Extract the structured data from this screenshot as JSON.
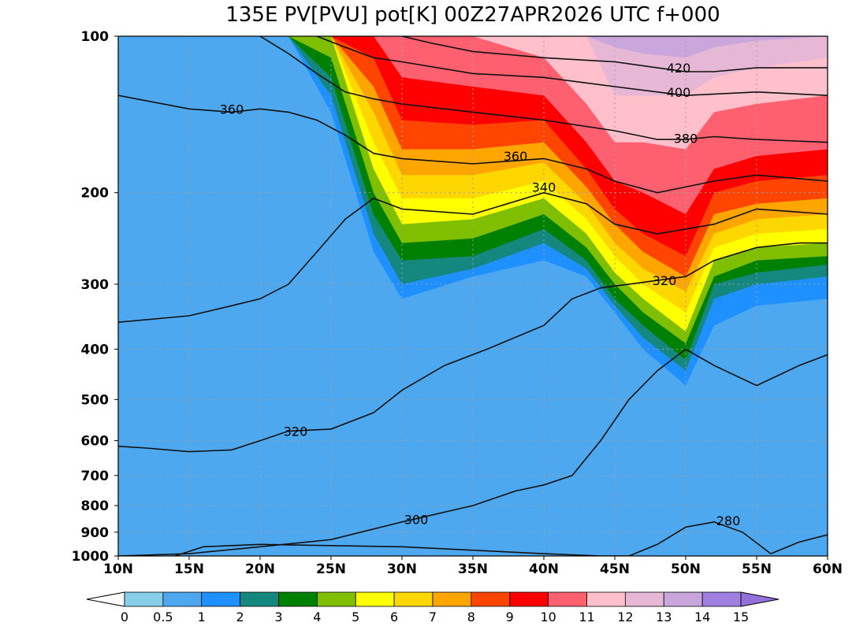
{
  "chart_data": {
    "type": "heatmap",
    "title": "135E PV[PVU] pot[K] 00Z27APR2026 UTC f+000",
    "xlabel": "",
    "ylabel": "",
    "x_ticks": [
      "10N",
      "15N",
      "20N",
      "25N",
      "30N",
      "35N",
      "40N",
      "45N",
      "50N",
      "55N",
      "60N"
    ],
    "x_range": [
      10,
      60
    ],
    "y_ticks": [
      100,
      200,
      300,
      400,
      500,
      600,
      700,
      800,
      900,
      1000
    ],
    "y_range": [
      1000,
      100
    ],
    "y_scale": "log",
    "grid": true,
    "colorbar": {
      "position": "bottom",
      "levels": [
        "0",
        "0.5",
        "1",
        "2",
        "3",
        "4",
        "5",
        "6",
        "7",
        "8",
        "9",
        "10",
        "11",
        "12",
        "13",
        "14",
        "15"
      ],
      "colors": [
        "#87ceeb",
        "#4da8f0",
        "#1e90ff",
        "#14877f",
        "#008000",
        "#7fbf00",
        "#ffff00",
        "#ffd700",
        "#ffa500",
        "#ff4500",
        "#ff0000",
        "#ff6070",
        "#ffc0cb",
        "#e6b8d6",
        "#c9a6dc",
        "#9f80e0"
      ],
      "extend_low_color": "#ffffff",
      "extend_high_color": "#9370db"
    },
    "pv_filled": {
      "columns_lat": [
        10,
        15,
        20,
        22,
        25,
        28,
        30,
        35,
        40,
        43,
        45,
        47,
        50,
        52,
        55,
        60
      ],
      "pv_levels": [
        1,
        2,
        3,
        4,
        5,
        6,
        7,
        8,
        9,
        10,
        11,
        12,
        13,
        14
      ],
      "pv_level_pressures": [
        [
          1000,
          1000,
          1000,
          1000,
          1000,
          1000,
          1000,
          1000,
          1000,
          1000,
          1000,
          1000,
          1000,
          1000,
          1000,
          1000
        ],
        [
          100,
          100,
          100,
          100,
          140,
          260,
          320,
          290,
          270,
          290,
          340,
          400,
          470,
          360,
          330,
          320
        ],
        [
          100,
          100,
          100,
          100,
          130,
          240,
          300,
          280,
          250,
          280,
          330,
          380,
          440,
          320,
          300,
          290
        ],
        [
          100,
          100,
          100,
          100,
          120,
          220,
          270,
          265,
          235,
          270,
          320,
          360,
          420,
          300,
          285,
          275
        ],
        [
          100,
          100,
          100,
          100,
          110,
          200,
          250,
          245,
          220,
          255,
          300,
          340,
          390,
          290,
          270,
          265
        ],
        [
          100,
          100,
          100,
          100,
          100,
          180,
          230,
          225,
          205,
          240,
          285,
          320,
          370,
          270,
          255,
          250
        ],
        [
          100,
          100,
          100,
          100,
          100,
          160,
          205,
          205,
          190,
          225,
          265,
          300,
          340,
          255,
          240,
          235
        ],
        [
          100,
          100,
          100,
          100,
          100,
          140,
          185,
          185,
          175,
          210,
          250,
          280,
          310,
          240,
          225,
          220
        ],
        [
          100,
          100,
          100,
          100,
          100,
          125,
          165,
          165,
          160,
          195,
          230,
          260,
          290,
          220,
          210,
          205
        ],
        [
          100,
          100,
          100,
          100,
          100,
          110,
          145,
          148,
          145,
          180,
          215,
          240,
          265,
          200,
          190,
          185
        ],
        [
          100,
          100,
          100,
          100,
          100,
          100,
          120,
          125,
          130,
          160,
          190,
          200,
          220,
          180,
          170,
          165
        ],
        [
          100,
          100,
          100,
          100,
          100,
          100,
          100,
          100,
          110,
          135,
          160,
          160,
          165,
          140,
          135,
          130
        ],
        [
          100,
          100,
          100,
          100,
          100,
          100,
          100,
          100,
          100,
          100,
          130,
          130,
          130,
          120,
          115,
          110
        ],
        [
          100,
          100,
          100,
          100,
          100,
          100,
          100,
          100,
          100,
          100,
          105,
          108,
          110,
          105,
          102,
          100
        ],
        [
          100,
          100,
          100,
          100,
          100,
          100,
          100,
          100,
          100,
          100,
          100,
          100,
          100,
          100,
          100,
          100
        ]
      ]
    },
    "theta_contours": [
      {
        "label": "280",
        "lats": [
          14,
          16,
          20,
          30,
          40,
          44,
          46,
          48,
          50,
          52,
          54,
          56,
          58,
          60
        ],
        "pressures": [
          1000,
          960,
          950,
          960,
          990,
          1000,
          1000,
          950,
          880,
          860,
          900,
          990,
          940,
          910
        ],
        "label_lat": 53,
        "label_p": 855
      },
      {
        "label": "300",
        "lats": [
          10,
          15,
          20,
          25,
          30,
          35,
          38,
          40,
          42,
          44,
          46,
          48,
          50,
          52,
          55,
          58,
          60
        ],
        "pressures": [
          1000,
          990,
          960,
          930,
          860,
          800,
          750,
          730,
          700,
          600,
          500,
          440,
          400,
          430,
          470,
          430,
          410
        ],
        "label_lat": 31,
        "label_p": 850
      },
      {
        "label": "320",
        "lats": [
          10,
          12,
          15,
          18,
          20,
          22,
          25,
          28,
          30,
          33,
          36,
          40,
          42,
          44,
          46,
          48,
          50,
          52,
          55,
          58,
          60
        ],
        "pressures": [
          615,
          620,
          630,
          625,
          600,
          575,
          570,
          530,
          480,
          430,
          400,
          360,
          320,
          305,
          300,
          295,
          290,
          270,
          255,
          250,
          250
        ],
        "label_lat": 22.5,
        "label_p": 575,
        "label2_lat": 48.5,
        "label2_p": 295
      },
      {
        "label": "340",
        "lats": [
          10,
          15,
          18,
          20,
          22,
          24,
          26,
          28,
          30,
          35,
          40,
          43,
          45,
          48,
          50,
          52,
          55,
          60
        ],
        "pressures": [
          355,
          345,
          330,
          320,
          300,
          260,
          225,
          205,
          215,
          220,
          200,
          210,
          230,
          240,
          235,
          230,
          215,
          220
        ],
        "label_lat": 40,
        "label_p": 195
      },
      {
        "label": "360",
        "lats": [
          10,
          15,
          18,
          20,
          22,
          24,
          26,
          28,
          30,
          35,
          40,
          43,
          45,
          48,
          50,
          52,
          55,
          60
        ],
        "pressures": [
          130,
          138,
          140,
          138,
          140,
          145,
          155,
          168,
          172,
          176,
          172,
          180,
          190,
          200,
          195,
          190,
          185,
          190
        ],
        "label_lat": 18,
        "label_p": 138,
        "label2_lat": 38,
        "label2_p": 170
      },
      {
        "label": "380",
        "lats": [
          20,
          22,
          24,
          26,
          28,
          30,
          35,
          40,
          45,
          48,
          50,
          52,
          55,
          60
        ],
        "pressures": [
          100,
          108,
          118,
          128,
          132,
          135,
          140,
          145,
          152,
          158,
          158,
          156,
          158,
          160
        ],
        "label_lat": 50,
        "label_p": 157
      },
      {
        "label": "400",
        "lats": [
          24,
          26,
          28,
          30,
          35,
          40,
          45,
          48,
          50,
          55,
          60
        ],
        "pressures": [
          100,
          105,
          110,
          112,
          118,
          120,
          125,
          128,
          130,
          128,
          130
        ],
        "label_lat": 49.5,
        "label_p": 128
      },
      {
        "label": "420",
        "lats": [
          30,
          32,
          35,
          40,
          45,
          48,
          50,
          52,
          55,
          60
        ],
        "pressures": [
          100,
          103,
          107,
          110,
          112,
          115,
          117,
          117,
          115,
          115
        ],
        "label_lat": 49.5,
        "label_p": 115
      }
    ]
  }
}
